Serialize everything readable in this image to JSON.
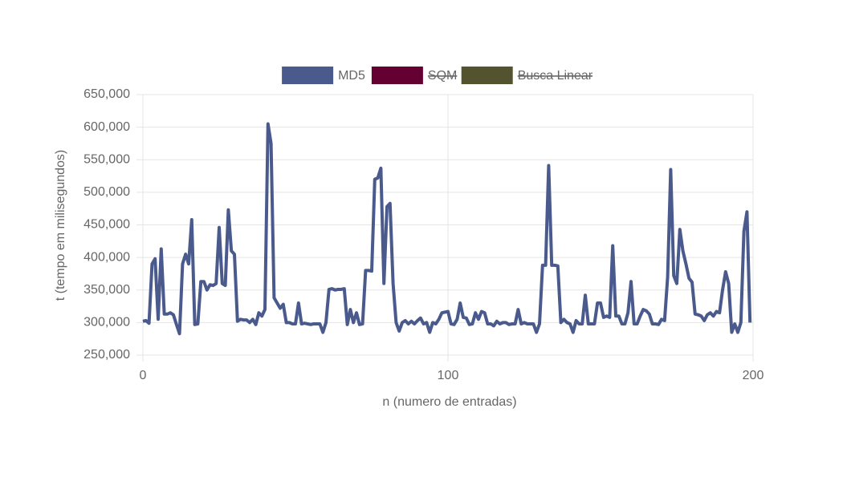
{
  "chart_data": {
    "type": "line",
    "xlabel": "n (numero de entradas)",
    "ylabel": "t (tempo em milisegundos)",
    "x": [
      0,
      1,
      2,
      3,
      4,
      5,
      6,
      7,
      8,
      9,
      10,
      11,
      12,
      13,
      14,
      15,
      16,
      17,
      18,
      19,
      20,
      21,
      22,
      23,
      24,
      25,
      26,
      27,
      28,
      29,
      30,
      31,
      32,
      33,
      34,
      35,
      36,
      37,
      38,
      39,
      40,
      41,
      42,
      43,
      44,
      45,
      46,
      47,
      48,
      49,
      50,
      51,
      52,
      53,
      54,
      55,
      56,
      57,
      58,
      59,
      60,
      61,
      62,
      63,
      64,
      65,
      66,
      67,
      68,
      69,
      70,
      71,
      72,
      73,
      74,
      75,
      76,
      77,
      78,
      79,
      80,
      81,
      82,
      83,
      84,
      85,
      86,
      87,
      88,
      89,
      90,
      91,
      92,
      93,
      94,
      95,
      96,
      97,
      98,
      99,
      100,
      101,
      102,
      103,
      104,
      105,
      106,
      107,
      108,
      109,
      110,
      111,
      112,
      113,
      114,
      115,
      116,
      117,
      118,
      119,
      120,
      121,
      122,
      123,
      124,
      125,
      126,
      127,
      128,
      129,
      130,
      131,
      132,
      133,
      134,
      135,
      136,
      137,
      138,
      139,
      140,
      141,
      142,
      143,
      144,
      145,
      146,
      147,
      148,
      149,
      150,
      151,
      152,
      153,
      154,
      155,
      156,
      157,
      158,
      159,
      160,
      161,
      162,
      163,
      164,
      165,
      166,
      167,
      168,
      169,
      170,
      171,
      172,
      173,
      174,
      175,
      176,
      177,
      178,
      179,
      180,
      181,
      182,
      183,
      184,
      185,
      186,
      187,
      188,
      189,
      190,
      191,
      192,
      193,
      194,
      195,
      196,
      197,
      198,
      199
    ],
    "series": [
      {
        "name": "MD5",
        "color": "#4a5a8c",
        "hidden": false,
        "values": [
          302000,
          303000,
          299000,
          390000,
          398000,
          305000,
          413000,
          313000,
          313000,
          315000,
          312000,
          297000,
          283000,
          390000,
          405000,
          390000,
          458000,
          297000,
          298000,
          363000,
          363000,
          350000,
          358000,
          357000,
          360000,
          446000,
          360000,
          357000,
          473000,
          410000,
          405000,
          302000,
          305000,
          304000,
          304000,
          300000,
          305000,
          297000,
          315000,
          310000,
          320000,
          605000,
          575000,
          338000,
          330000,
          322000,
          328000,
          300000,
          300000,
          298000,
          298000,
          330000,
          298000,
          299000,
          298000,
          297000,
          298000,
          298000,
          298000,
          285000,
          300000,
          351000,
          352000,
          350000,
          351000,
          351000,
          352000,
          297000,
          320000,
          300000,
          315000,
          297000,
          298000,
          380000,
          380000,
          379000,
          520000,
          522000,
          537000,
          360000,
          478000,
          483000,
          360000,
          300000,
          287000,
          300000,
          303000,
          298000,
          302000,
          298000,
          303000,
          307000,
          298000,
          300000,
          285000,
          300000,
          298000,
          305000,
          315000,
          316000,
          317000,
          298000,
          297000,
          305000,
          330000,
          308000,
          307000,
          297000,
          298000,
          315000,
          305000,
          317000,
          315000,
          298000,
          298000,
          295000,
          302000,
          298000,
          300000,
          300000,
          297000,
          298000,
          298000,
          320000,
          298000,
          300000,
          298000,
          298000,
          298000,
          285000,
          298000,
          388000,
          388000,
          541000,
          388000,
          388000,
          387000,
          300000,
          305000,
          300000,
          298000,
          285000,
          303000,
          298000,
          298000,
          342000,
          298000,
          298000,
          298000,
          330000,
          330000,
          308000,
          310000,
          308000,
          418000,
          310000,
          310000,
          298000,
          298000,
          315000,
          363000,
          298000,
          298000,
          310000,
          320000,
          318000,
          313000,
          298000,
          298000,
          297000,
          305000,
          303000,
          370000,
          535000,
          372000,
          360000,
          443000,
          410000,
          390000,
          368000,
          362000,
          313000,
          312000,
          310000,
          303000,
          312000,
          315000,
          310000,
          317000,
          315000,
          350000,
          378000,
          360000,
          285000,
          298000,
          285000,
          300000,
          440000,
          470000,
          300000
        ]
      },
      {
        "name": "SQM",
        "color": "#650033",
        "hidden": true
      },
      {
        "name": "Busca Linear",
        "color": "#545330",
        "hidden": true
      }
    ],
    "xlim": [
      0,
      200
    ],
    "xticks": [
      0,
      100,
      200
    ],
    "ylim": [
      250000,
      650000
    ],
    "yticks": [
      {
        "value": 250000,
        "label": "250,000"
      },
      {
        "value": 300000,
        "label": "300,000"
      },
      {
        "value": 350000,
        "label": "350,000"
      },
      {
        "value": 400000,
        "label": "400,000"
      },
      {
        "value": 450000,
        "label": "450,000"
      },
      {
        "value": 500000,
        "label": "500,000"
      },
      {
        "value": 550000,
        "label": "550,000"
      },
      {
        "value": 600000,
        "label": "600,000"
      },
      {
        "value": 650000,
        "label": "650,000"
      }
    ],
    "grid": true,
    "legend": "top"
  }
}
